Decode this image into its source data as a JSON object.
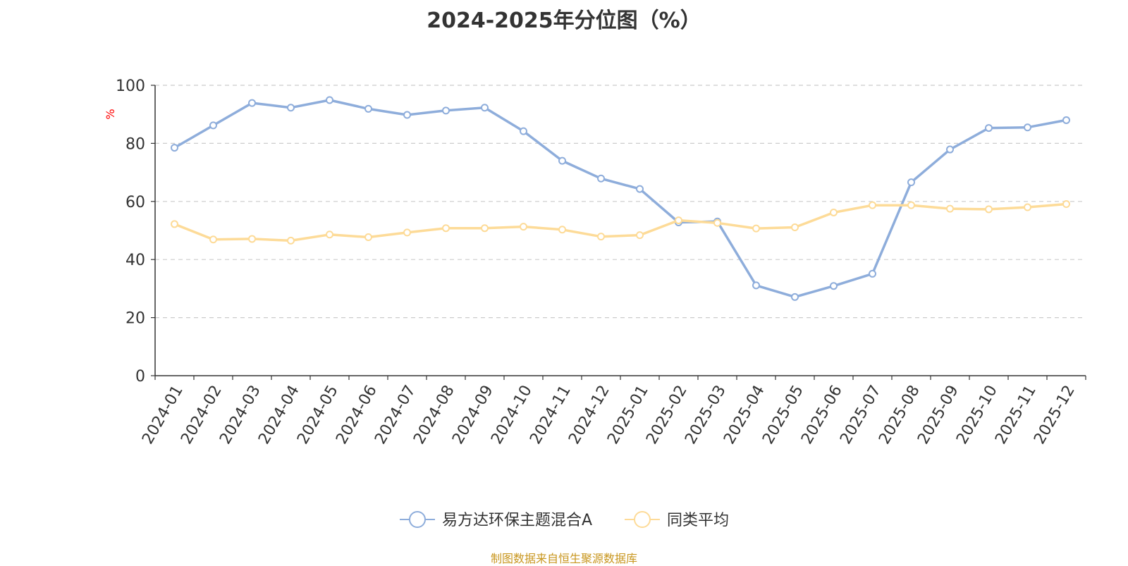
{
  "chart_data": {
    "type": "line",
    "title": "2024-2025年分位图（%）",
    "ylabel": "%",
    "xlabel": "",
    "ylim": [
      0,
      100
    ],
    "yticks": [
      0,
      20,
      40,
      60,
      80,
      100
    ],
    "grid": true,
    "legend_position": "bottom",
    "categories": [
      "2024-01",
      "2024-02",
      "2024-03",
      "2024-04",
      "2024-05",
      "2024-06",
      "2024-07",
      "2024-08",
      "2024-09",
      "2024-10",
      "2024-11",
      "2024-12",
      "2025-01",
      "2025-02",
      "2025-03",
      "2025-04",
      "2025-05",
      "2025-06",
      "2025-07",
      "2025-08",
      "2025-09",
      "2025-10",
      "2025-11",
      "2025-12"
    ],
    "series": [
      {
        "name": "易方达环保主题混合A",
        "color": "#8eaddb",
        "values": [
          78.5,
          86.2,
          93.9,
          92.3,
          94.9,
          91.9,
          89.8,
          91.3,
          92.3,
          84.2,
          74.0,
          67.9,
          64.3,
          52.8,
          53.1,
          31.1,
          27.1,
          30.9,
          35.1,
          66.6,
          77.9,
          85.3,
          85.5,
          88.0
        ]
      },
      {
        "name": "同类平均",
        "color": "#fddb98",
        "values": [
          52.2,
          46.9,
          47.1,
          46.5,
          48.6,
          47.7,
          49.3,
          50.8,
          50.8,
          51.3,
          50.3,
          47.9,
          48.4,
          53.5,
          52.6,
          50.7,
          51.1,
          56.2,
          58.7,
          58.7,
          57.5,
          57.3,
          58.0,
          59.1
        ]
      }
    ]
  },
  "source_note": "制图数据来自恒生聚源数据库"
}
